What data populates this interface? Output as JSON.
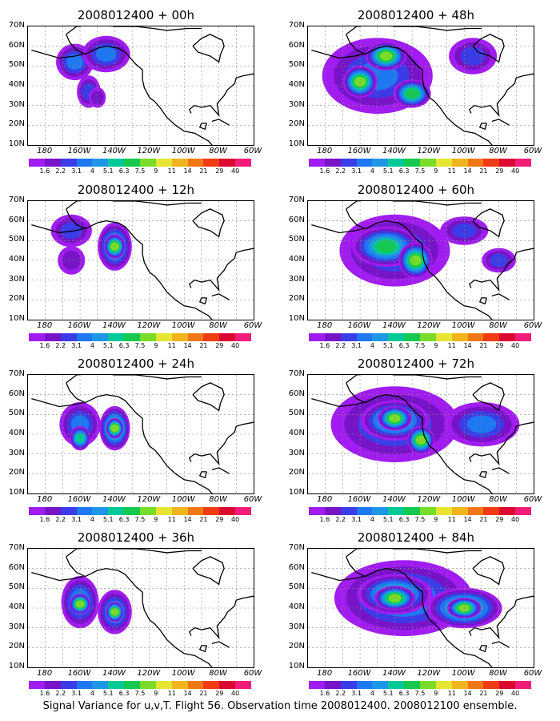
{
  "panels": [
    {
      "title": "2008012400 + 00h",
      "col": 0,
      "row": 0,
      "blobs": [
        {
          "x": -163,
          "y": 52,
          "rx": 9,
          "ry": 8,
          "level": 3
        },
        {
          "x": -145,
          "y": 56,
          "rx": 12,
          "ry": 8,
          "level": 3
        },
        {
          "x": -155,
          "y": 37,
          "rx": 5,
          "ry": 7,
          "level": 2
        },
        {
          "x": -150,
          "y": 34,
          "rx": 3,
          "ry": 4,
          "level": 1
        }
      ]
    },
    {
      "title": "2008012400 + 48h",
      "col": 1,
      "row": 0,
      "blobs": [
        {
          "x": -150,
          "y": 45,
          "rx": 30,
          "ry": 18,
          "level": 3
        },
        {
          "x": -160,
          "y": 42,
          "rx": 8,
          "ry": 7,
          "level": 7
        },
        {
          "x": -145,
          "y": 55,
          "rx": 10,
          "ry": 6,
          "level": 7
        },
        {
          "x": -130,
          "y": 36,
          "rx": 9,
          "ry": 6,
          "level": 6
        },
        {
          "x": -95,
          "y": 55,
          "rx": 12,
          "ry": 8,
          "level": 2
        }
      ]
    },
    {
      "title": "2008012400 + 12h",
      "col": 0,
      "row": 1,
      "blobs": [
        {
          "x": -165,
          "y": 55,
          "rx": 10,
          "ry": 7,
          "level": 2
        },
        {
          "x": -140,
          "y": 47,
          "rx": 8,
          "ry": 11,
          "level": 5
        },
        {
          "x": -140,
          "y": 47,
          "rx": 4,
          "ry": 5,
          "level": 7
        },
        {
          "x": -165,
          "y": 40,
          "rx": 6,
          "ry": 6,
          "level": 1
        }
      ]
    },
    {
      "title": "2008012400 + 60h",
      "col": 1,
      "row": 1,
      "blobs": [
        {
          "x": -140,
          "y": 45,
          "rx": 30,
          "ry": 17,
          "level": 3
        },
        {
          "x": -145,
          "y": 47,
          "rx": 18,
          "ry": 9,
          "level": 6
        },
        {
          "x": -128,
          "y": 40,
          "rx": 8,
          "ry": 8,
          "level": 7
        },
        {
          "x": -100,
          "y": 55,
          "rx": 12,
          "ry": 6,
          "level": 2
        },
        {
          "x": -80,
          "y": 40,
          "rx": 8,
          "ry": 5,
          "level": 2
        }
      ]
    },
    {
      "title": "2008012400 + 24h",
      "col": 0,
      "row": 2,
      "blobs": [
        {
          "x": -160,
          "y": 45,
          "rx": 10,
          "ry": 10,
          "level": 3
        },
        {
          "x": -140,
          "y": 43,
          "rx": 7,
          "ry": 10,
          "level": 6
        },
        {
          "x": -140,
          "y": 43,
          "rx": 3,
          "ry": 4,
          "level": 7
        },
        {
          "x": -160,
          "y": 38,
          "rx": 4,
          "ry": 5,
          "level": 5
        }
      ]
    },
    {
      "title": "2008012400 + 72h",
      "col": 1,
      "row": 2,
      "blobs": [
        {
          "x": -140,
          "y": 45,
          "rx": 35,
          "ry": 18,
          "level": 3
        },
        {
          "x": -140,
          "y": 47,
          "rx": 18,
          "ry": 9,
          "level": 6
        },
        {
          "x": -140,
          "y": 48,
          "rx": 8,
          "ry": 5,
          "level": 7
        },
        {
          "x": -90,
          "y": 45,
          "rx": 20,
          "ry": 10,
          "level": 3
        },
        {
          "x": -125,
          "y": 37,
          "rx": 6,
          "ry": 6,
          "level": 7
        }
      ]
    },
    {
      "title": "2008012400 + 36h",
      "col": 0,
      "row": 3,
      "blobs": [
        {
          "x": -160,
          "y": 43,
          "rx": 9,
          "ry": 12,
          "level": 4
        },
        {
          "x": -160,
          "y": 42,
          "rx": 4,
          "ry": 4,
          "level": 7
        },
        {
          "x": -140,
          "y": 38,
          "rx": 8,
          "ry": 10,
          "level": 4
        },
        {
          "x": -140,
          "y": 38,
          "rx": 3,
          "ry": 4,
          "level": 7
        }
      ]
    },
    {
      "title": "2008012400 + 84h",
      "col": 1,
      "row": 3,
      "blobs": [
        {
          "x": -135,
          "y": 45,
          "rx": 38,
          "ry": 18,
          "level": 4
        },
        {
          "x": -140,
          "y": 47,
          "rx": 20,
          "ry": 9,
          "level": 6
        },
        {
          "x": -140,
          "y": 45,
          "rx": 10,
          "ry": 5,
          "level": 7
        },
        {
          "x": -100,
          "y": 40,
          "rx": 20,
          "ry": 9,
          "level": 6
        },
        {
          "x": -100,
          "y": 40,
          "rx": 8,
          "ry": 4,
          "level": 7
        }
      ]
    }
  ],
  "lat_labels": [
    "70N",
    "60N",
    "50N",
    "40N",
    "30N",
    "20N",
    "10N"
  ],
  "lat_values": [
    70,
    60,
    50,
    40,
    30,
    20,
    10
  ],
  "lon_labels": [
    "180",
    "160W",
    "140W",
    "120W",
    "100W",
    "80W",
    "60W"
  ],
  "lon_values": [
    -180,
    -160,
    -140,
    -120,
    -100,
    -80,
    -60
  ],
  "colorbar": {
    "labels": [
      "1.6",
      "2.2",
      "3.1",
      "4",
      "5.1",
      "6.3",
      "7.5",
      "9",
      "11",
      "14",
      "21",
      "29",
      "40"
    ],
    "colors": [
      "#a01cf0",
      "#7814c8",
      "#3c3ce6",
      "#1e78f0",
      "#1e96e6",
      "#00c896",
      "#14c850",
      "#78dc28",
      "#e6e632",
      "#f0b41e",
      "#f07814",
      "#f03c14",
      "#dc0a32",
      "#f01e78"
    ]
  },
  "footer": "Signal Variance for u,v,T. Flight 56. Observation time 2008012400. 2008012100 ensemble."
}
